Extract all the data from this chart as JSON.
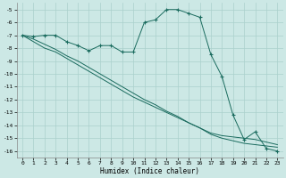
{
  "xlabel": "Humidex (Indice chaleur)",
  "bg_color": "#cce8e5",
  "grid_color": "#aad0cc",
  "line_color": "#1a6b5e",
  "x": [
    0,
    1,
    2,
    3,
    4,
    5,
    6,
    7,
    8,
    9,
    10,
    11,
    12,
    13,
    14,
    15,
    16,
    17,
    18,
    19,
    20,
    21,
    22,
    23
  ],
  "y_main": [
    -7.0,
    -7.1,
    -7.0,
    -7.0,
    -7.5,
    -7.8,
    -8.2,
    -7.8,
    -7.8,
    -8.3,
    -8.3,
    -6.0,
    -5.8,
    -5.0,
    -5.0,
    -5.3,
    -5.6,
    -8.5,
    -10.2,
    -13.2,
    -15.1,
    -14.5,
    -15.8,
    -16.0
  ],
  "y_line1": [
    -7.0,
    -7.3,
    -7.7,
    -8.1,
    -8.6,
    -9.0,
    -9.5,
    -10.0,
    -10.5,
    -11.0,
    -11.5,
    -12.0,
    -12.4,
    -12.9,
    -13.3,
    -13.8,
    -14.2,
    -14.6,
    -14.8,
    -14.9,
    -15.0,
    -15.1,
    -15.3,
    -15.5
  ],
  "y_line2": [
    -7.0,
    -7.5,
    -8.0,
    -8.3,
    -8.8,
    -9.3,
    -9.8,
    -10.3,
    -10.8,
    -11.3,
    -11.8,
    -12.2,
    -12.6,
    -13.0,
    -13.4,
    -13.8,
    -14.2,
    -14.7,
    -15.0,
    -15.2,
    -15.4,
    -15.5,
    -15.6,
    -15.7
  ],
  "ylim": [
    -16.5,
    -4.5
  ],
  "xlim": [
    -0.5,
    23.5
  ],
  "yticks": [
    -5,
    -6,
    -7,
    -8,
    -9,
    -10,
    -11,
    -12,
    -13,
    -14,
    -15,
    -16
  ],
  "xticks": [
    0,
    1,
    2,
    3,
    4,
    5,
    6,
    7,
    8,
    9,
    10,
    11,
    12,
    13,
    14,
    15,
    16,
    17,
    18,
    19,
    20,
    21,
    22,
    23
  ]
}
